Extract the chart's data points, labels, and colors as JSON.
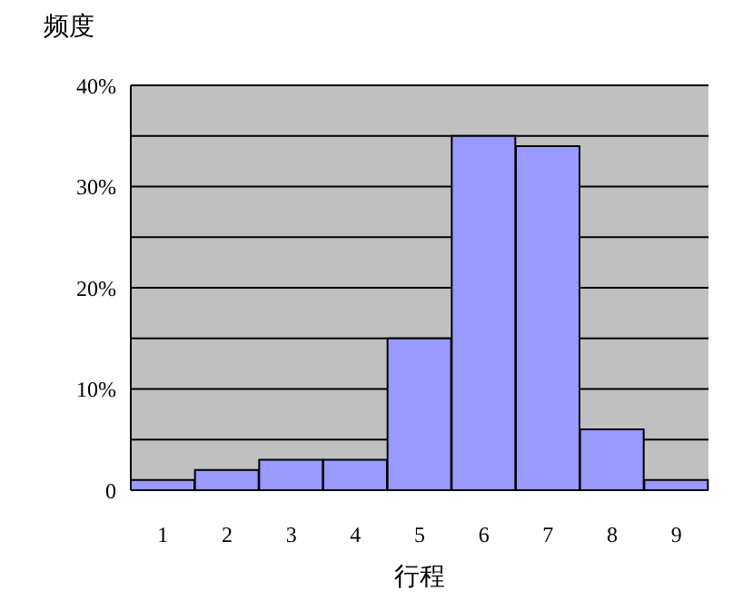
{
  "chart_data": {
    "type": "bar",
    "ylabel": "频度",
    "xlabel": "行程",
    "categories": [
      "1",
      "2",
      "3",
      "4",
      "5",
      "6",
      "7",
      "8",
      "9"
    ],
    "values": [
      1,
      2,
      3,
      3,
      15,
      35,
      34,
      6,
      1
    ],
    "color": "#9999ff",
    "ylim": [
      0,
      40
    ],
    "yticks": [
      {
        "value": 0,
        "label": "0"
      },
      {
        "value": 5,
        "label": null
      },
      {
        "value": 10,
        "label": "10%"
      },
      {
        "value": 15,
        "label": null
      },
      {
        "value": 20,
        "label": "20%"
      },
      {
        "value": 25,
        "label": null
      },
      {
        "value": 30,
        "label": "30%"
      },
      {
        "value": 35,
        "label": null
      },
      {
        "value": 40,
        "label": "40%"
      }
    ],
    "grid": "y"
  }
}
